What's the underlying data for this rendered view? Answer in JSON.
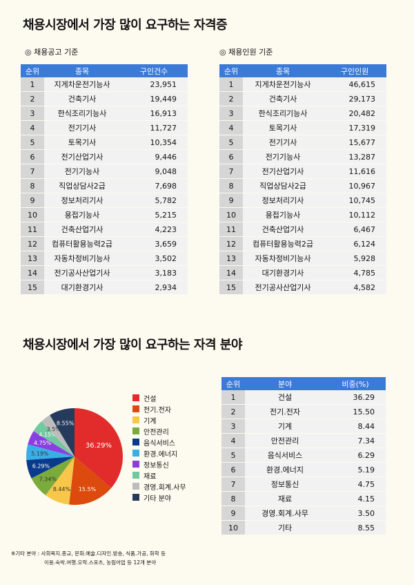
{
  "title_top": "채용시장에서 가장 많이 요구하는 자격증",
  "left_table": {
    "subtitle": "◎ 채용공고 기준",
    "headers": [
      "순위",
      "종목",
      "구인건수"
    ],
    "rows": [
      [
        "1",
        "지게차운전기능사",
        "23,951"
      ],
      [
        "2",
        "건축기사",
        "19,449"
      ],
      [
        "3",
        "한식조리기능사",
        "16,913"
      ],
      [
        "4",
        "전기기사",
        "11,727"
      ],
      [
        "5",
        "토목기사",
        "10,354"
      ],
      [
        "6",
        "전기산업기사",
        "9,446"
      ],
      [
        "7",
        "전기기능사",
        "9,048"
      ],
      [
        "8",
        "직업상담사2급",
        "7,698"
      ],
      [
        "9",
        "정보처리기사",
        "5,782"
      ],
      [
        "10",
        "용접기능사",
        "5,215"
      ],
      [
        "11",
        "건축산업기사",
        "4,223"
      ],
      [
        "12",
        "컴퓨터활용능력2급",
        "3,659"
      ],
      [
        "13",
        "자동차정비기능사",
        "3,502"
      ],
      [
        "14",
        "전기공사산업기사",
        "3,183"
      ],
      [
        "15",
        "대기환경기사",
        "2,934"
      ]
    ]
  },
  "right_table": {
    "subtitle": "◎ 채용인원 기준",
    "headers": [
      "순위",
      "종목",
      "구인인원"
    ],
    "rows": [
      [
        "1",
        "지게차운전기능사",
        "46,615"
      ],
      [
        "2",
        "건축기사",
        "29,173"
      ],
      [
        "3",
        "한식조리기능사",
        "20,482"
      ],
      [
        "4",
        "토목기사",
        "17,319"
      ],
      [
        "5",
        "전기기사",
        "15,677"
      ],
      [
        "6",
        "전기기능사",
        "13,287"
      ],
      [
        "7",
        "전기산업기사",
        "11,616"
      ],
      [
        "8",
        "직업상담사2급",
        "10,967"
      ],
      [
        "9",
        "정보처리기사",
        "10,745"
      ],
      [
        "10",
        "용접기능사",
        "10,112"
      ],
      [
        "11",
        "건축산업기사",
        "6,467"
      ],
      [
        "12",
        "컴퓨터활용능력2급",
        "6,124"
      ],
      [
        "13",
        "자동차정비기능사",
        "5,928"
      ],
      [
        "14",
        "대기환경기사",
        "4,785"
      ],
      [
        "15",
        "전기공사산업기사",
        "4,582"
      ]
    ]
  },
  "title_bottom": "채용시장에서 가장 많이 요구하는 자격 분야",
  "field_table": {
    "headers": [
      "순위",
      "분야",
      "비중(%)"
    ],
    "rows": [
      [
        "1",
        "건설",
        "36.29"
      ],
      [
        "2",
        "전기.전자",
        "15.50"
      ],
      [
        "3",
        "기계",
        "8.44"
      ],
      [
        "4",
        "안전관리",
        "7.34"
      ],
      [
        "5",
        "음식서비스",
        "6.29"
      ],
      [
        "6",
        "환경.에너지",
        "5.19"
      ],
      [
        "7",
        "정보통신",
        "4.75"
      ],
      [
        "8",
        "재료",
        "4.15"
      ],
      [
        "9",
        "경영.회계.사무",
        "3.50"
      ],
      [
        "10",
        "기타",
        "8.55"
      ]
    ]
  },
  "chart_data": {
    "type": "pie",
    "categories": [
      "건설",
      "전기.전자",
      "기계",
      "안전관리",
      "음식서비스",
      "환경.에너지",
      "정보통신",
      "재료",
      "경영.회계.사무",
      "기타 분야"
    ],
    "values": [
      36.29,
      15.5,
      8.44,
      7.34,
      6.29,
      5.19,
      4.75,
      4.15,
      3.5,
      8.55
    ],
    "labels": [
      "36.29%",
      "15.5%",
      "8.44%",
      "7.34%",
      "6.29%",
      "5.19%",
      "4.75%",
      "4.15%",
      "3.5%",
      "8.55%"
    ],
    "colors": [
      "#e22b2b",
      "#dc4a0e",
      "#f6c749",
      "#7bab3c",
      "#0a3a8c",
      "#3aaee6",
      "#8a3fe0",
      "#72c9a0",
      "#bdbdbd",
      "#263b5c"
    ],
    "label_colors": [
      "#ffffff",
      "#ffffff",
      "#333333",
      "#333333",
      "#ffffff",
      "#333333",
      "#ffffff",
      "#ffffff",
      "#333333",
      "#ffffff"
    ],
    "legend_placement": "right"
  },
  "footnote": {
    "line1": "※기타 분야 : 사회복지.종교, 문화.예술.디자인.방송, 식품.가공, 화학 등",
    "line2": "이용.숙박.여행.오락.스포츠, 농림어업 등   12개 분야"
  }
}
